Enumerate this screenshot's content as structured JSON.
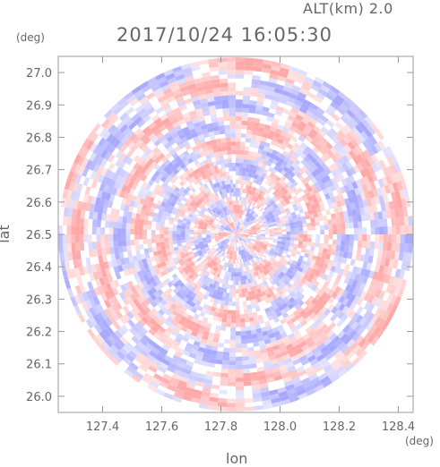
{
  "header": {
    "altitude_label": "ALT(km) 2.0",
    "timestamp": "2017/10/24 16:05:30"
  },
  "chart_data": {
    "type": "heatmap",
    "title": "2017/10/24 16:05:30",
    "subtitle": "ALT(km) 2.0",
    "xlabel": "lon",
    "ylabel": "lat",
    "x_unit": "(deg)",
    "y_unit": "(deg)",
    "xlim": [
      127.25,
      128.45
    ],
    "ylim": [
      25.95,
      27.05
    ],
    "x_ticks": [
      127.4,
      127.6,
      127.8,
      128.0,
      128.2,
      128.4
    ],
    "x_tick_labels": [
      "127.4",
      "127.6",
      "127.8",
      "128.0",
      "128.2",
      "128.4"
    ],
    "y_ticks": [
      26.0,
      26.1,
      26.2,
      26.3,
      26.4,
      26.5,
      26.6,
      26.7,
      26.8,
      26.9,
      27.0
    ],
    "y_tick_labels": [
      "26.0",
      "26.1",
      "26.2",
      "26.3",
      "26.4",
      "26.5",
      "26.6",
      "26.7",
      "26.8",
      "26.9",
      "27.0"
    ],
    "center": {
      "lon": 127.85,
      "lat": 26.5
    },
    "radius_deg": 0.6,
    "grid": false,
    "colors": {
      "positive": "#ff9999",
      "negative": "#9999ff",
      "neutral": "#ffffff",
      "axis": "#999999",
      "text": "#666666"
    }
  }
}
